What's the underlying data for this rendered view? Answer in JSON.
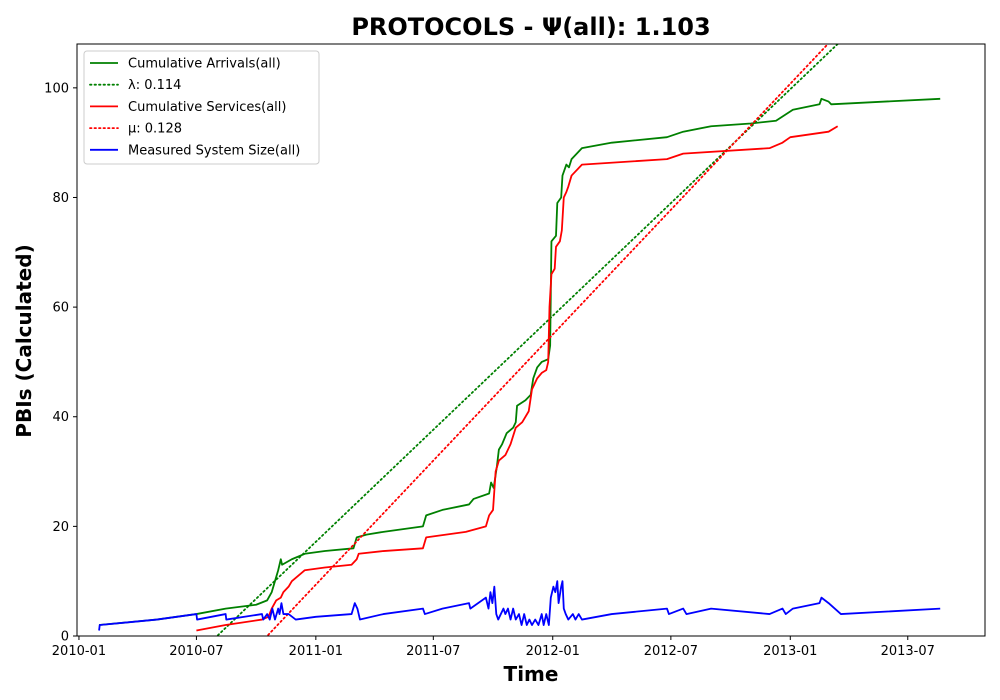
{
  "chart_data": {
    "type": "line",
    "title": "PROTOCOLS -  Ψ(all): 1.103",
    "xlabel": "Time",
    "ylabel": "PBIs (Calculated)",
    "xlim": [
      "2009-12-29",
      "2013-10-28"
    ],
    "ylim": [
      0,
      108
    ],
    "x_ticks": [
      "2010-01-01",
      "2010-07-01",
      "2011-01-01",
      "2011-07-01",
      "2012-01-01",
      "2012-07-01",
      "2013-01-01",
      "2013-07-01"
    ],
    "x_tick_labels": [
      "2010-01",
      "2010-07",
      "2011-01",
      "2011-07",
      "2012-01",
      "2012-07",
      "2013-01",
      "2013-07"
    ],
    "y_ticks": [
      0,
      20,
      40,
      60,
      80,
      100
    ],
    "grid": false,
    "legend_position": "top-left",
    "series": [
      {
        "name": "Cumulative Arrivals(all)",
        "color": "#008000",
        "style": "solid",
        "points": [
          [
            "2010-02-01",
            2
          ],
          [
            "2010-05-01",
            3
          ],
          [
            "2010-07-01",
            4
          ],
          [
            "2010-08-15",
            5
          ],
          [
            "2010-10-01",
            5.7
          ],
          [
            "2010-10-18",
            6.5
          ],
          [
            "2010-10-25",
            8
          ],
          [
            "2010-10-30",
            10
          ],
          [
            "2010-11-04",
            12
          ],
          [
            "2010-11-08",
            14
          ],
          [
            "2010-11-10",
            13
          ],
          [
            "2010-11-25",
            14
          ],
          [
            "2010-12-15",
            15
          ],
          [
            "2011-01-15",
            15.5
          ],
          [
            "2011-02-28",
            16
          ],
          [
            "2011-03-05",
            18
          ],
          [
            "2011-03-20",
            18.5
          ],
          [
            "2011-04-15",
            19
          ],
          [
            "2011-06-15",
            20
          ],
          [
            "2011-06-20",
            22
          ],
          [
            "2011-07-15",
            23
          ],
          [
            "2011-08-25",
            24
          ],
          [
            "2011-09-01",
            25
          ],
          [
            "2011-09-25",
            26
          ],
          [
            "2011-09-28",
            28
          ],
          [
            "2011-10-02",
            27
          ],
          [
            "2011-10-07",
            31
          ],
          [
            "2011-10-10",
            34
          ],
          [
            "2011-10-15",
            35
          ],
          [
            "2011-10-22",
            37
          ],
          [
            "2011-11-01",
            38
          ],
          [
            "2011-11-05",
            39
          ],
          [
            "2011-11-07",
            42
          ],
          [
            "2011-11-20",
            43
          ],
          [
            "2011-11-28",
            44
          ],
          [
            "2011-12-02",
            47
          ],
          [
            "2011-12-08",
            49
          ],
          [
            "2011-12-15",
            50
          ],
          [
            "2011-12-25",
            50.5
          ],
          [
            "2011-12-28",
            53
          ],
          [
            "2011-12-30",
            72
          ],
          [
            "2012-01-06",
            73
          ],
          [
            "2012-01-08",
            79
          ],
          [
            "2012-01-14",
            80
          ],
          [
            "2012-01-16",
            84
          ],
          [
            "2012-01-22",
            86
          ],
          [
            "2012-01-26",
            85.5
          ],
          [
            "2012-01-30",
            87
          ],
          [
            "2012-02-15",
            89
          ],
          [
            "2012-04-01",
            90
          ],
          [
            "2012-06-25",
            91
          ],
          [
            "2012-07-20",
            92
          ],
          [
            "2012-09-01",
            93
          ],
          [
            "2012-11-01",
            93.5
          ],
          [
            "2012-12-10",
            94
          ],
          [
            "2013-01-05",
            96
          ],
          [
            "2013-02-15",
            97
          ],
          [
            "2013-02-18",
            98
          ],
          [
            "2013-03-01",
            97.5
          ],
          [
            "2013-03-05",
            97
          ],
          [
            "2013-08-20",
            98
          ]
        ]
      },
      {
        "name": "λ: 0.114",
        "color": "#008000",
        "style": "dotted",
        "points": [
          [
            "2010-07-24",
            -1
          ],
          [
            "2013-03-15",
            108
          ]
        ]
      },
      {
        "name": "Cumulative Services(all)",
        "color": "#ff0000",
        "style": "solid",
        "points": [
          [
            "2010-07-01",
            1
          ],
          [
            "2010-08-15",
            2
          ],
          [
            "2010-10-10",
            3
          ],
          [
            "2010-10-20",
            3.5
          ],
          [
            "2010-10-25",
            5
          ],
          [
            "2010-11-01",
            6.5
          ],
          [
            "2010-11-08",
            7
          ],
          [
            "2010-11-12",
            8
          ],
          [
            "2010-11-20",
            9
          ],
          [
            "2010-11-25",
            10
          ],
          [
            "2010-12-05",
            11
          ],
          [
            "2010-12-15",
            12
          ],
          [
            "2011-01-15",
            12.5
          ],
          [
            "2011-02-25",
            13
          ],
          [
            "2011-03-05",
            14
          ],
          [
            "2011-03-08",
            15
          ],
          [
            "2011-04-15",
            15.5
          ],
          [
            "2011-06-15",
            16
          ],
          [
            "2011-06-20",
            18
          ],
          [
            "2011-08-20",
            19
          ],
          [
            "2011-09-20",
            20
          ],
          [
            "2011-09-25",
            22
          ],
          [
            "2011-10-01",
            23
          ],
          [
            "2011-10-05",
            30
          ],
          [
            "2011-10-10",
            32
          ],
          [
            "2011-10-20",
            33
          ],
          [
            "2011-10-28",
            35
          ],
          [
            "2011-11-05",
            38
          ],
          [
            "2011-11-15",
            39
          ],
          [
            "2011-11-25",
            41
          ],
          [
            "2011-11-30",
            45
          ],
          [
            "2011-12-08",
            47
          ],
          [
            "2011-12-15",
            48
          ],
          [
            "2011-12-22",
            48.5
          ],
          [
            "2011-12-25",
            50
          ],
          [
            "2011-12-27",
            60
          ],
          [
            "2011-12-30",
            66
          ],
          [
            "2012-01-04",
            67
          ],
          [
            "2012-01-06",
            71
          ],
          [
            "2012-01-12",
            72
          ],
          [
            "2012-01-15",
            74
          ],
          [
            "2012-01-18",
            80
          ],
          [
            "2012-01-22",
            81
          ],
          [
            "2012-01-25",
            82
          ],
          [
            "2012-01-30",
            84
          ],
          [
            "2012-02-15",
            86
          ],
          [
            "2012-06-25",
            87
          ],
          [
            "2012-07-20",
            88
          ],
          [
            "2012-11-30",
            89
          ],
          [
            "2012-12-20",
            90
          ],
          [
            "2013-01-01",
            91
          ],
          [
            "2013-03-01",
            92
          ],
          [
            "2013-03-15",
            93
          ]
        ]
      },
      {
        "name": "μ: 0.128",
        "color": "#ff0000",
        "style": "dotted",
        "points": [
          [
            "2010-10-10",
            -1
          ],
          [
            "2013-02-28",
            108
          ]
        ]
      },
      {
        "name": "Measured System Size(all)",
        "color": "#0000ff",
        "style": "solid",
        "points": [
          [
            "2010-02-01",
            1
          ],
          [
            "2010-02-02",
            2
          ],
          [
            "2010-05-01",
            3
          ],
          [
            "2010-07-01",
            4
          ],
          [
            "2010-07-02",
            3
          ],
          [
            "2010-08-15",
            4
          ],
          [
            "2010-08-16",
            3
          ],
          [
            "2010-10-10",
            4
          ],
          [
            "2010-10-12",
            3
          ],
          [
            "2010-10-18",
            4
          ],
          [
            "2010-10-22",
            3
          ],
          [
            "2010-10-26",
            5
          ],
          [
            "2010-10-30",
            3
          ],
          [
            "2010-11-04",
            5
          ],
          [
            "2010-11-06",
            4
          ],
          [
            "2010-11-09",
            6
          ],
          [
            "2010-11-12",
            4
          ],
          [
            "2010-11-20",
            4
          ],
          [
            "2010-12-01",
            3
          ],
          [
            "2011-01-01",
            3.5
          ],
          [
            "2011-02-25",
            4
          ],
          [
            "2011-03-02",
            6
          ],
          [
            "2011-03-06",
            5
          ],
          [
            "2011-03-10",
            3
          ],
          [
            "2011-04-15",
            4
          ],
          [
            "2011-06-15",
            5
          ],
          [
            "2011-06-18",
            4
          ],
          [
            "2011-07-15",
            5
          ],
          [
            "2011-08-25",
            6
          ],
          [
            "2011-08-27",
            5
          ],
          [
            "2011-09-20",
            7
          ],
          [
            "2011-09-24",
            5
          ],
          [
            "2011-09-27",
            8
          ],
          [
            "2011-09-30",
            6
          ],
          [
            "2011-10-03",
            9
          ],
          [
            "2011-10-06",
            4
          ],
          [
            "2011-10-09",
            3
          ],
          [
            "2011-10-13",
            4
          ],
          [
            "2011-10-17",
            5
          ],
          [
            "2011-10-20",
            4
          ],
          [
            "2011-10-24",
            5
          ],
          [
            "2011-10-28",
            3
          ],
          [
            "2011-11-01",
            5
          ],
          [
            "2011-11-05",
            3
          ],
          [
            "2011-11-10",
            4
          ],
          [
            "2011-11-14",
            2
          ],
          [
            "2011-11-18",
            4
          ],
          [
            "2011-11-22",
            2
          ],
          [
            "2011-11-26",
            3
          ],
          [
            "2011-11-30",
            2
          ],
          [
            "2011-12-05",
            3
          ],
          [
            "2011-12-10",
            2
          ],
          [
            "2011-12-15",
            4
          ],
          [
            "2011-12-18",
            2
          ],
          [
            "2011-12-22",
            4
          ],
          [
            "2011-12-26",
            2
          ],
          [
            "2011-12-29",
            7
          ],
          [
            "2012-01-02",
            9
          ],
          [
            "2012-01-05",
            8
          ],
          [
            "2012-01-08",
            10
          ],
          [
            "2012-01-10",
            6
          ],
          [
            "2012-01-14",
            9
          ],
          [
            "2012-01-16",
            10
          ],
          [
            "2012-01-18",
            5
          ],
          [
            "2012-01-21",
            4
          ],
          [
            "2012-01-25",
            3
          ],
          [
            "2012-02-01",
            4
          ],
          [
            "2012-02-05",
            3
          ],
          [
            "2012-02-10",
            4
          ],
          [
            "2012-02-15",
            3
          ],
          [
            "2012-04-01",
            4
          ],
          [
            "2012-06-25",
            5
          ],
          [
            "2012-06-28",
            4
          ],
          [
            "2012-07-20",
            5
          ],
          [
            "2012-07-25",
            4
          ],
          [
            "2012-09-01",
            5
          ],
          [
            "2012-11-30",
            4
          ],
          [
            "2012-12-20",
            5
          ],
          [
            "2012-12-25",
            4
          ],
          [
            "2013-01-05",
            5
          ],
          [
            "2013-02-15",
            6
          ],
          [
            "2013-02-18",
            7
          ],
          [
            "2013-03-01",
            6
          ],
          [
            "2013-03-20",
            4
          ],
          [
            "2013-08-20",
            5
          ]
        ]
      }
    ]
  }
}
